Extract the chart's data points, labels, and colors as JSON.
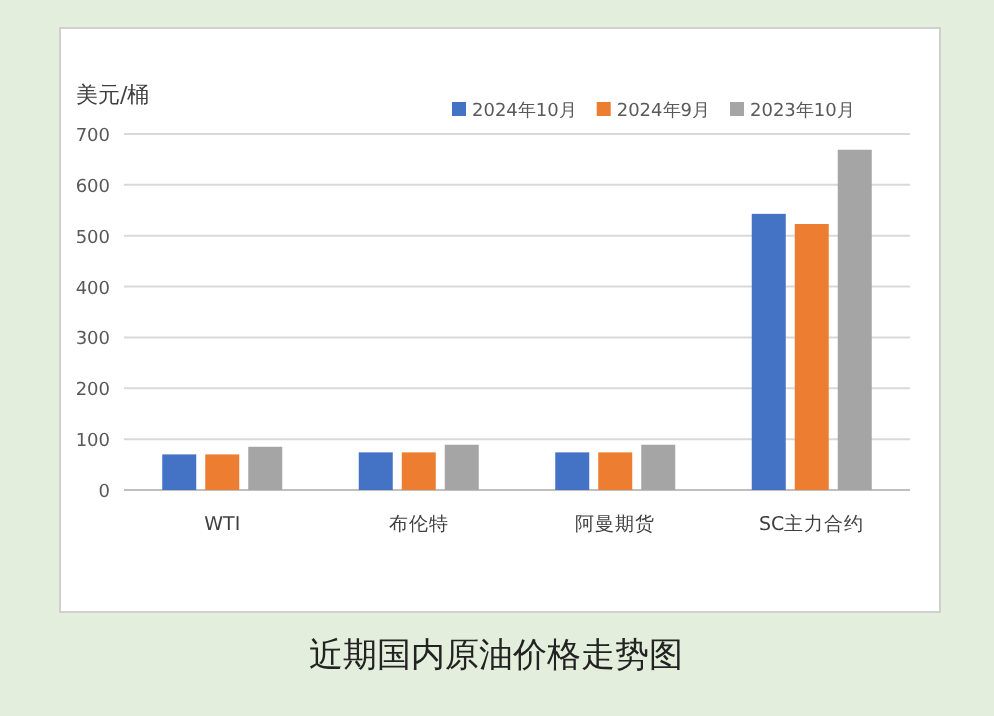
{
  "chart_data": {
    "type": "bar",
    "title": "近期国内原油价格走势图",
    "ylabel": "美元/桶",
    "categories": [
      "WTI",
      "布伦特",
      "阿曼期货",
      "SC主力合约"
    ],
    "series": [
      {
        "name": "2024年10月",
        "color": "#4472c4",
        "values": [
          70,
          74,
          74,
          543
        ]
      },
      {
        "name": "2024年9月",
        "color": "#ed7d31",
        "values": [
          70,
          74,
          74,
          523
        ]
      },
      {
        "name": "2023年10月",
        "color": "#a5a5a5",
        "values": [
          85,
          89,
          89,
          669
        ]
      }
    ],
    "ylim": [
      0,
      700
    ],
    "yticks": [
      0,
      100,
      200,
      300,
      400,
      500,
      600,
      700
    ],
    "grid": "y",
    "legend": "top right"
  }
}
